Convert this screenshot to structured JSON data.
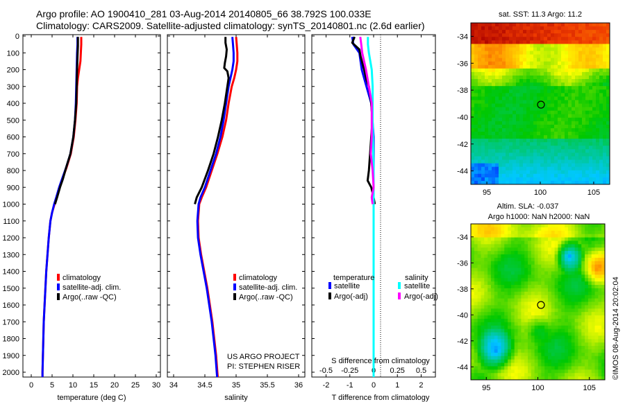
{
  "header": {
    "line1": "Argo profile: AO 1900410_281 03-Aug-2014 20140805_66 38.792S 100.033E",
    "line2": "Climatology: CARS2009. Satellite-adjusted climatology: synTS_20140801.nc (2.6d earlier)"
  },
  "credits": {
    "project": "US ARGO PROJECT",
    "pi": "PI: STEPHEN RISER"
  },
  "watermark": "©IMOS 08-Aug-2014 20:02:04",
  "colors": {
    "climatology": "#ff0000",
    "satellite": "#0000ff",
    "argo": "#000000",
    "sal_satellite": "#00ffff",
    "sal_argo": "#ff00ff"
  },
  "chart_data": [
    {
      "type": "line",
      "xlabel": "temperature (deg C)",
      "xlim": [
        -2,
        31
      ],
      "ylim": [
        0,
        2050
      ],
      "y_reversed": true,
      "xticks": [
        "0",
        "5",
        "10",
        "15",
        "20",
        "25",
        "30"
      ],
      "yticks": [
        "0",
        "100",
        "200",
        "300",
        "400",
        "500",
        "600",
        "700",
        "800",
        "900",
        "1000",
        "1100",
        "1200",
        "1300",
        "1400",
        "1500",
        "1600",
        "1700",
        "1800",
        "1900",
        "2000"
      ],
      "legend": {
        "placement": "lower-middle",
        "entries": [
          "climatology",
          "satellite-adj. clim.",
          "Argo(..raw -QC)"
        ]
      },
      "series": [
        {
          "name": "climatology",
          "color": "#ff0000",
          "points": [
            [
              12.0,
              5
            ],
            [
              12.0,
              50
            ],
            [
              11.9,
              100
            ],
            [
              11.8,
              150
            ],
            [
              11.5,
              200
            ],
            [
              11.2,
              250
            ],
            [
              11.0,
              300
            ],
            [
              10.9,
              400
            ],
            [
              10.6,
              500
            ],
            [
              10.2,
              600
            ],
            [
              9.5,
              700
            ],
            [
              8.5,
              780
            ],
            [
              7.5,
              850
            ],
            [
              6.8,
              900
            ],
            [
              6.1,
              960
            ],
            [
              5.6,
              1000
            ],
            [
              5.0,
              1050
            ],
            [
              4.6,
              1100
            ],
            [
              4.2,
              1200
            ],
            [
              3.9,
              1300
            ],
            [
              3.6,
              1400
            ],
            [
              3.4,
              1500
            ],
            [
              3.2,
              1600
            ],
            [
              3.0,
              1700
            ],
            [
              2.9,
              1800
            ],
            [
              2.8,
              1900
            ],
            [
              2.7,
              2000
            ],
            [
              2.7,
              2045
            ]
          ]
        },
        {
          "name": "satellite-adj. clim.",
          "color": "#0000ff",
          "points": [
            [
              11.1,
              5
            ],
            [
              11.1,
              50
            ],
            [
              11.0,
              100
            ],
            [
              10.9,
              200
            ],
            [
              10.8,
              300
            ],
            [
              10.7,
              400
            ],
            [
              10.5,
              500
            ],
            [
              10.1,
              600
            ],
            [
              9.4,
              700
            ],
            [
              8.4,
              780
            ],
            [
              7.4,
              850
            ],
            [
              6.7,
              900
            ],
            [
              6.0,
              960
            ],
            [
              5.5,
              1000
            ],
            [
              5.0,
              1050
            ],
            [
              4.6,
              1100
            ],
            [
              4.2,
              1200
            ],
            [
              3.9,
              1300
            ],
            [
              3.6,
              1400
            ],
            [
              3.4,
              1500
            ],
            [
              3.2,
              1600
            ],
            [
              3.0,
              1700
            ],
            [
              2.9,
              1800
            ],
            [
              2.8,
              1900
            ],
            [
              2.7,
              2000
            ],
            [
              2.7,
              2045
            ]
          ]
        },
        {
          "name": "Argo(..raw -QC)",
          "color": "#000000",
          "points": [
            [
              11.2,
              5
            ],
            [
              11.2,
              60
            ],
            [
              11.1,
              120
            ],
            [
              11.0,
              200
            ],
            [
              10.9,
              300
            ],
            [
              10.8,
              400
            ],
            [
              10.5,
              500
            ],
            [
              10.1,
              600
            ],
            [
              9.4,
              700
            ],
            [
              8.4,
              780
            ],
            [
              7.6,
              850
            ],
            [
              6.9,
              900
            ],
            [
              6.2,
              960
            ],
            [
              5.7,
              1000
            ]
          ]
        }
      ]
    },
    {
      "type": "line",
      "xlabel": "salinity",
      "xlim": [
        33.9,
        36.1
      ],
      "ylim": [
        0,
        2050
      ],
      "y_reversed": true,
      "xticks": [
        "34",
        "34.5",
        "35",
        "35.5",
        "36"
      ],
      "legend": {
        "placement": "lower-middle",
        "entries": [
          "climatology",
          "satellite-adj. clim.",
          "Argo(..raw -QC)"
        ]
      },
      "series": [
        {
          "name": "climatology",
          "color": "#ff0000",
          "points": [
            [
              35.0,
              5
            ],
            [
              35.01,
              50
            ],
            [
              35.02,
              100
            ],
            [
              35.02,
              150
            ],
            [
              35.0,
              200
            ],
            [
              34.97,
              250
            ],
            [
              34.93,
              300
            ],
            [
              34.88,
              400
            ],
            [
              34.84,
              500
            ],
            [
              34.78,
              600
            ],
            [
              34.7,
              700
            ],
            [
              34.61,
              800
            ],
            [
              34.52,
              900
            ],
            [
              34.45,
              960
            ],
            [
              34.41,
              1000
            ],
            [
              34.39,
              1100
            ],
            [
              34.4,
              1200
            ],
            [
              34.44,
              1300
            ],
            [
              34.49,
              1400
            ],
            [
              34.54,
              1500
            ],
            [
              34.58,
              1600
            ],
            [
              34.62,
              1700
            ],
            [
              34.65,
              1800
            ],
            [
              34.68,
              1900
            ],
            [
              34.7,
              2000
            ],
            [
              34.71,
              2045
            ]
          ]
        },
        {
          "name": "satellite-adj. clim.",
          "color": "#0000ff",
          "points": [
            [
              34.94,
              5
            ],
            [
              34.95,
              50
            ],
            [
              34.96,
              100
            ],
            [
              34.96,
              150
            ],
            [
              34.94,
              200
            ],
            [
              34.91,
              250
            ],
            [
              34.88,
              300
            ],
            [
              34.84,
              400
            ],
            [
              34.8,
              500
            ],
            [
              34.75,
              600
            ],
            [
              34.68,
              700
            ],
            [
              34.59,
              800
            ],
            [
              34.5,
              900
            ],
            [
              34.43,
              960
            ],
            [
              34.4,
              1000
            ],
            [
              34.38,
              1100
            ],
            [
              34.39,
              1200
            ],
            [
              34.43,
              1300
            ],
            [
              34.48,
              1400
            ],
            [
              34.53,
              1500
            ],
            [
              34.57,
              1600
            ],
            [
              34.61,
              1700
            ],
            [
              34.64,
              1800
            ],
            [
              34.67,
              1900
            ],
            [
              34.69,
              2000
            ],
            [
              34.7,
              2045
            ]
          ]
        },
        {
          "name": "Argo(..raw -QC)",
          "color": "#000000",
          "points": [
            [
              34.83,
              5
            ],
            [
              34.83,
              40
            ],
            [
              34.85,
              80
            ],
            [
              34.84,
              120
            ],
            [
              34.82,
              160
            ],
            [
              34.81,
              190
            ],
            [
              34.86,
              210
            ],
            [
              34.88,
              250
            ],
            [
              34.86,
              300
            ],
            [
              34.82,
              400
            ],
            [
              34.77,
              500
            ],
            [
              34.71,
              600
            ],
            [
              34.64,
              700
            ],
            [
              34.55,
              800
            ],
            [
              34.45,
              900
            ],
            [
              34.37,
              960
            ],
            [
              34.34,
              1000
            ]
          ]
        }
      ]
    },
    {
      "type": "line",
      "xlabel": "T difference from climatology",
      "xlabel_top": "S difference from climatology",
      "xlim": [
        -2.6,
        2.6
      ],
      "xlim_salinity": [
        -0.65,
        0.65
      ],
      "ylim": [
        0,
        2050
      ],
      "y_reversed": true,
      "xticks": [
        "-2",
        "-1",
        "0",
        "1",
        "2"
      ],
      "xticks_top": [
        "-0.5",
        "-0.25",
        "0",
        "0.25",
        "0.5"
      ],
      "legend": {
        "placement": "lower-middle",
        "temperature_title": "temperature",
        "salinity_title": "salinity",
        "temperature_entries": [
          "satellite",
          "Argo(-adj)"
        ],
        "salinity_entries": [
          "satellite",
          "Argo(-adj)"
        ]
      },
      "series": [
        {
          "name": "temperature satellite",
          "color": "#0000ff",
          "points": [
            [
              -0.9,
              5
            ],
            [
              -0.85,
              50
            ],
            [
              -0.6,
              100
            ],
            [
              -0.5,
              200
            ],
            [
              -0.3,
              300
            ],
            [
              -0.1,
              400
            ],
            [
              -0.05,
              500
            ],
            [
              0,
              600
            ],
            [
              0,
              700
            ],
            [
              0,
              900
            ],
            [
              0,
              1000
            ],
            [
              0,
              1200
            ],
            [
              0,
              1400
            ],
            [
              0,
              1600
            ],
            [
              0,
              1800
            ],
            [
              0,
              2045
            ]
          ]
        },
        {
          "name": "temperature Argo(-adj)",
          "color": "#000000",
          "points": [
            [
              -0.8,
              5
            ],
            [
              -0.9,
              40
            ],
            [
              -0.6,
              80
            ],
            [
              -0.55,
              120
            ],
            [
              -0.4,
              200
            ],
            [
              -0.3,
              260
            ],
            [
              -0.2,
              300
            ],
            [
              -0.1,
              400
            ],
            [
              -0.05,
              500
            ],
            [
              -0.1,
              600
            ],
            [
              -0.15,
              700
            ],
            [
              -0.2,
              800
            ],
            [
              -0.25,
              860
            ],
            [
              -0.1,
              900
            ],
            [
              0,
              960
            ],
            [
              0.05,
              1000
            ]
          ]
        },
        {
          "name": "salinity satellite",
          "color": "#00ffff",
          "points": [
            [
              -0.06,
              5
            ],
            [
              -0.06,
              50
            ],
            [
              -0.05,
              100
            ],
            [
              -0.02,
              200
            ],
            [
              -0.01,
              300
            ],
            [
              -0.01,
              500
            ],
            [
              0,
              800
            ],
            [
              0,
              1000
            ],
            [
              0,
              1500
            ],
            [
              0,
              2045
            ]
          ]
        },
        {
          "name": "salinity Argo(-adj)",
          "color": "#ff00ff",
          "points": [
            [
              -0.14,
              5
            ],
            [
              -0.13,
              50
            ],
            [
              -0.12,
              100
            ],
            [
              -0.08,
              200
            ],
            [
              -0.05,
              300
            ],
            [
              -0.02,
              400
            ],
            [
              -0.02,
              500
            ],
            [
              -0.02,
              600
            ],
            [
              -0.03,
              700
            ],
            [
              -0.01,
              800
            ],
            [
              0,
              900
            ],
            [
              -0.02,
              960
            ],
            [
              -0.01,
              1000
            ]
          ]
        }
      ]
    },
    {
      "type": "heatmap",
      "title": "sat. SST: 11.3 Argo: 11.2",
      "xlim": [
        93.5,
        106.5
      ],
      "ylim": [
        -45,
        -33
      ],
      "xticks": [
        "95",
        "100",
        "105"
      ],
      "yticks": [
        "-34",
        "-36",
        "-38",
        "-40",
        "-42",
        "-44"
      ],
      "marker": {
        "lon": 100.033,
        "lat": -38.792
      }
    },
    {
      "type": "heatmap",
      "title": "Altim. SLA: -0.037",
      "subtitle": "Argo h1000: NaN h2000: NaN",
      "xlim": [
        93.5,
        106.5
      ],
      "ylim": [
        -45,
        -33
      ],
      "xticks": [
        "95",
        "100",
        "105"
      ],
      "yticks": [
        "-34",
        "-36",
        "-38",
        "-40",
        "-42",
        "-44"
      ],
      "marker": {
        "lon": 100.033,
        "lat": -38.792
      }
    }
  ]
}
